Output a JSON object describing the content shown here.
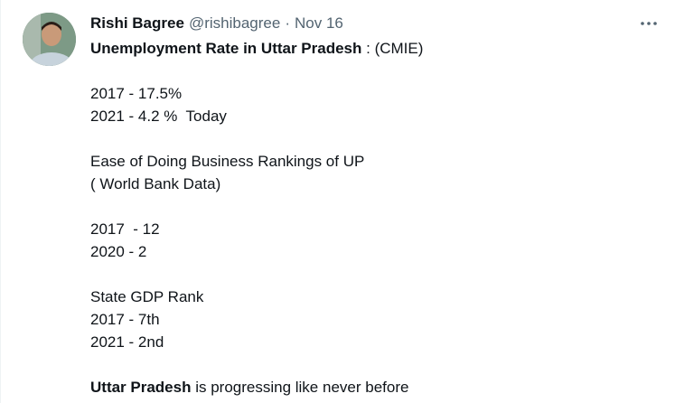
{
  "tweet": {
    "author": {
      "display_name": "Rishi Bagree",
      "handle": "@rishibagree",
      "separator": "·",
      "date": "Nov 16"
    },
    "more_icon": "more-horizontal-icon",
    "lines": {
      "l1_bold": "Unemployment Rate in Uttar Pradesh",
      "l1_rest": " : (CMIE)",
      "l2": "2017 - 17.5%",
      "l3": "2021 - 4.2 %  Today",
      "l4": "Ease of Doing Business Rankings of UP",
      "l5": "( World Bank Data)",
      "l6": "2017  - 12",
      "l7": "2020 - 2",
      "l8": "State GDP Rank",
      "l9": "2017 - 7th",
      "l10": "2021 - 2nd",
      "l11_bold": "Uttar Pradesh",
      "l11_rest": " is progressing like never before"
    },
    "colors": {
      "text": "#0f1419",
      "muted": "#536471"
    }
  }
}
